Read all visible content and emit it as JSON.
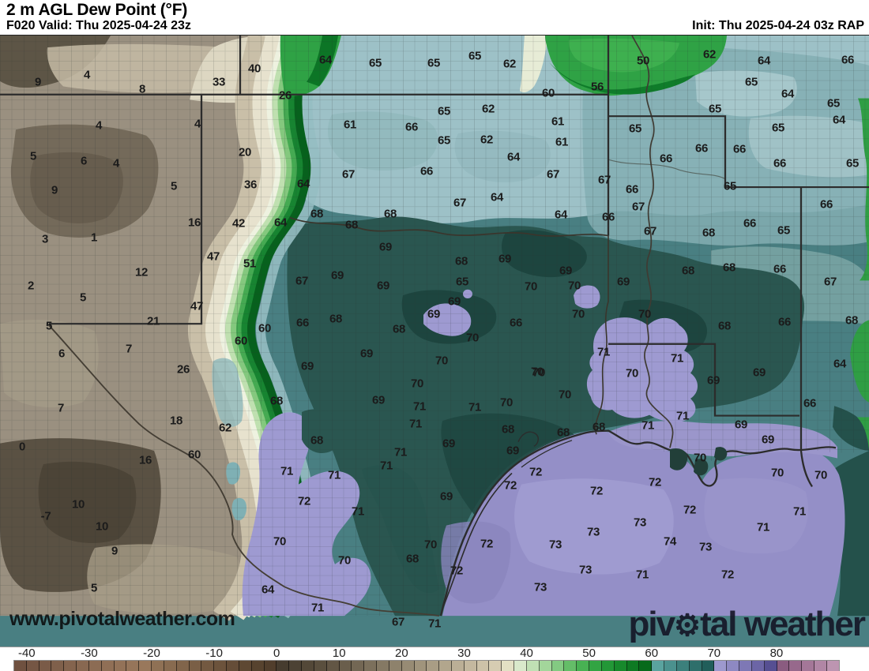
{
  "header": {
    "title": "2 m AGL Dew Point (°F)",
    "valid": "F020 Valid: Thu 2025-04-24 23z",
    "init": "Init: Thu 2025-04-24 03z RAP"
  },
  "map": {
    "watermark": "www.pivotalweather.com",
    "logo": {
      "pre": "piv",
      "gear": "⚙",
      "post": "tal weather"
    },
    "units": "°F",
    "station_values": [
      [
        48,
        104,
        "9"
      ],
      [
        110,
        95,
        "4"
      ],
      [
        180,
        113,
        "8"
      ],
      [
        277,
        104,
        "33"
      ],
      [
        322,
        87,
        "40"
      ],
      [
        361,
        121,
        "26"
      ],
      [
        125,
        159,
        "4"
      ],
      [
        250,
        157,
        "4"
      ],
      [
        412,
        76,
        "64"
      ],
      [
        475,
        80,
        "65"
      ],
      [
        549,
        80,
        "65"
      ],
      [
        601,
        71,
        "65"
      ],
      [
        645,
        81,
        "62"
      ],
      [
        694,
        118,
        "60"
      ],
      [
        756,
        110,
        "56"
      ],
      [
        814,
        77,
        "50"
      ],
      [
        898,
        69,
        "62"
      ],
      [
        967,
        77,
        "64"
      ],
      [
        1073,
        76,
        "66"
      ],
      [
        951,
        104,
        "65"
      ],
      [
        997,
        119,
        "64"
      ],
      [
        1055,
        131,
        "65"
      ],
      [
        1062,
        152,
        "64"
      ],
      [
        42,
        198,
        "5"
      ],
      [
        106,
        204,
        "6"
      ],
      [
        147,
        207,
        "4"
      ],
      [
        310,
        193,
        "20"
      ],
      [
        69,
        241,
        "9"
      ],
      [
        220,
        236,
        "5"
      ],
      [
        317,
        234,
        "36"
      ],
      [
        443,
        158,
        "61"
      ],
      [
        562,
        141,
        "65"
      ],
      [
        618,
        138,
        "62"
      ],
      [
        521,
        161,
        "66"
      ],
      [
        562,
        178,
        "65"
      ],
      [
        616,
        177,
        "62"
      ],
      [
        706,
        154,
        "61"
      ],
      [
        711,
        180,
        "61"
      ],
      [
        650,
        199,
        "64"
      ],
      [
        905,
        138,
        "65"
      ],
      [
        804,
        163,
        "65"
      ],
      [
        985,
        162,
        "65"
      ],
      [
        888,
        188,
        "66"
      ],
      [
        936,
        189,
        "66"
      ],
      [
        843,
        201,
        "66"
      ],
      [
        987,
        207,
        "66"
      ],
      [
        1079,
        207,
        "65"
      ],
      [
        384,
        233,
        "64"
      ],
      [
        441,
        221,
        "67"
      ],
      [
        540,
        217,
        "66"
      ],
      [
        582,
        257,
        "67"
      ],
      [
        629,
        250,
        "64"
      ],
      [
        700,
        221,
        "67"
      ],
      [
        710,
        272,
        "64"
      ],
      [
        765,
        228,
        "67"
      ],
      [
        800,
        240,
        "66"
      ],
      [
        808,
        262,
        "67"
      ],
      [
        770,
        275,
        "66"
      ],
      [
        924,
        236,
        "65"
      ],
      [
        1046,
        259,
        "66"
      ],
      [
        246,
        282,
        "16"
      ],
      [
        302,
        283,
        "42"
      ],
      [
        355,
        282,
        "64"
      ],
      [
        401,
        271,
        "68"
      ],
      [
        445,
        285,
        "68"
      ],
      [
        494,
        271,
        "68"
      ],
      [
        57,
        303,
        "3"
      ],
      [
        119,
        301,
        "1"
      ],
      [
        949,
        283,
        "66"
      ],
      [
        992,
        292,
        "65"
      ],
      [
        823,
        293,
        "67"
      ],
      [
        897,
        295,
        "68"
      ],
      [
        488,
        313,
        "69"
      ],
      [
        584,
        331,
        "68"
      ],
      [
        639,
        328,
        "69"
      ],
      [
        270,
        325,
        "47"
      ],
      [
        316,
        334,
        "51"
      ],
      [
        179,
        345,
        "12"
      ],
      [
        427,
        349,
        "69"
      ],
      [
        382,
        356,
        "67"
      ],
      [
        485,
        362,
        "69"
      ],
      [
        585,
        357,
        "65"
      ],
      [
        716,
        343,
        "69"
      ],
      [
        672,
        363,
        "70"
      ],
      [
        727,
        362,
        "70"
      ],
      [
        789,
        357,
        "69"
      ],
      [
        871,
        343,
        "68"
      ],
      [
        923,
        339,
        "68"
      ],
      [
        987,
        341,
        "66"
      ],
      [
        1051,
        357,
        "67"
      ],
      [
        39,
        362,
        "2"
      ],
      [
        105,
        377,
        "5"
      ],
      [
        249,
        388,
        "47"
      ],
      [
        62,
        413,
        "5"
      ],
      [
        194,
        407,
        "21"
      ],
      [
        335,
        416,
        "60"
      ],
      [
        305,
        432,
        "60"
      ],
      [
        575,
        382,
        "69"
      ],
      [
        549,
        398,
        "69"
      ],
      [
        505,
        417,
        "68"
      ],
      [
        383,
        409,
        "66"
      ],
      [
        425,
        404,
        "68"
      ],
      [
        653,
        409,
        "66"
      ],
      [
        598,
        428,
        "70"
      ],
      [
        732,
        398,
        "70"
      ],
      [
        816,
        398,
        "70"
      ],
      [
        917,
        413,
        "68"
      ],
      [
        993,
        408,
        "66"
      ],
      [
        1078,
        406,
        "68"
      ],
      [
        78,
        448,
        "6"
      ],
      [
        163,
        442,
        "7"
      ],
      [
        232,
        468,
        "26"
      ],
      [
        389,
        464,
        "69"
      ],
      [
        464,
        448,
        "69"
      ],
      [
        559,
        457,
        "70"
      ],
      [
        680,
        471,
        "70"
      ],
      [
        764,
        446,
        "71"
      ],
      [
        857,
        454,
        "71"
      ],
      [
        1063,
        461,
        "64"
      ],
      [
        528,
        486,
        "70"
      ],
      [
        479,
        507,
        "69"
      ],
      [
        350,
        508,
        "68"
      ],
      [
        531,
        515,
        "71"
      ],
      [
        601,
        516,
        "71"
      ],
      [
        641,
        510,
        "70"
      ],
      [
        715,
        500,
        "70"
      ],
      [
        682,
        472,
        "70"
      ],
      [
        800,
        473,
        "70"
      ],
      [
        903,
        482,
        "69"
      ],
      [
        961,
        472,
        "69"
      ],
      [
        1025,
        511,
        "66"
      ],
      [
        77,
        517,
        "7"
      ],
      [
        223,
        533,
        "18"
      ],
      [
        864,
        527,
        "71"
      ],
      [
        820,
        539,
        "71"
      ],
      [
        758,
        541,
        "68"
      ],
      [
        643,
        544,
        "68"
      ],
      [
        713,
        548,
        "68"
      ],
      [
        938,
        538,
        "69"
      ],
      [
        972,
        557,
        "69"
      ],
      [
        285,
        542,
        "62"
      ],
      [
        401,
        558,
        "68"
      ],
      [
        526,
        537,
        "71"
      ],
      [
        568,
        562,
        "69"
      ],
      [
        507,
        573,
        "71"
      ],
      [
        489,
        590,
        "71"
      ],
      [
        28,
        566,
        "0"
      ],
      [
        184,
        583,
        "16"
      ],
      [
        246,
        576,
        "60"
      ],
      [
        363,
        597,
        "71"
      ],
      [
        423,
        602,
        "71"
      ],
      [
        385,
        635,
        "72"
      ],
      [
        565,
        629,
        "69"
      ],
      [
        453,
        648,
        "71"
      ],
      [
        99,
        639,
        "10"
      ],
      [
        58,
        654,
        "-7"
      ],
      [
        129,
        667,
        "10"
      ],
      [
        145,
        698,
        "9"
      ],
      [
        354,
        686,
        "70"
      ],
      [
        436,
        710,
        "70"
      ],
      [
        545,
        690,
        "70"
      ],
      [
        522,
        708,
        "68"
      ],
      [
        578,
        723,
        "72"
      ],
      [
        616,
        689,
        "72"
      ],
      [
        649,
        571,
        "69"
      ],
      [
        678,
        598,
        "72"
      ],
      [
        646,
        615,
        "72"
      ],
      [
        755,
        622,
        "72"
      ],
      [
        829,
        611,
        "72"
      ],
      [
        886,
        580,
        "70"
      ],
      [
        984,
        599,
        "70"
      ],
      [
        1039,
        602,
        "70"
      ],
      [
        873,
        646,
        "72"
      ],
      [
        1012,
        648,
        "71"
      ],
      [
        966,
        668,
        "71"
      ],
      [
        810,
        662,
        "73"
      ],
      [
        751,
        674,
        "73"
      ],
      [
        703,
        690,
        "73"
      ],
      [
        848,
        686,
        "74"
      ],
      [
        893,
        693,
        "73"
      ],
      [
        741,
        722,
        "73"
      ],
      [
        813,
        728,
        "71"
      ],
      [
        921,
        728,
        "72"
      ],
      [
        684,
        744,
        "73"
      ],
      [
        119,
        745,
        "5"
      ],
      [
        339,
        747,
        "64"
      ],
      [
        402,
        770,
        "71"
      ],
      [
        504,
        788,
        "67"
      ],
      [
        550,
        790,
        "71"
      ]
    ]
  },
  "colorbar": {
    "min": -42,
    "max": 90,
    "ticks": [
      -40,
      -30,
      -20,
      -10,
      0,
      10,
      20,
      30,
      40,
      50,
      60,
      70,
      80
    ],
    "segments": [
      "#6f5140",
      "#75564​4",
      "#7a5b48",
      "#7f604b",
      "#84644e",
      "#886851",
      "#8c6c54",
      "#906f56",
      "#937258",
      "#96755a",
      "#99785c",
      "#8f7155",
      "#886b50",
      "#81654b",
      "#7a5f46",
      "#735941",
      "#6c533c",
      "#654d38",
      "#5e4833",
      "#57432f",
      "#513e2c",
      "#463c2f",
      "#4c4234",
      "#534838",
      "#5a4f3e",
      "#625645",
      "#6a5e4c",
      "#736754",
      "#7c705c",
      "#857964",
      "#8e826c",
      "#978b74",
      "#a0947c",
      "#a99d85",
      "#b2a68d",
      "#bbaf96",
      "#c4b89f",
      "#cdc2a8",
      "#d6ccb2",
      "#e3e0c4",
      "#d9e9cb",
      "#c0e0b4",
      "#a3d69b",
      "#83ca82",
      "#64bd68",
      "#48b153",
      "#32a443",
      "#239737",
      "#17892c",
      "#0e7a23",
      "#076a1b",
      "#5aa39f",
      "#4b918e",
      "#3c807c",
      "#2e6f6b",
      "#215e5a",
      "#9d99ce",
      "#8e89c2",
      "#7e78b5",
      "#6c65a6",
      "#564f92",
      "#8a5c80",
      "#97698c",
      "#a47798",
      "#b186a5",
      "#bd95b1"
    ]
  },
  "colors": {
    "land_brown": "#9a9080",
    "dryline_cream": "#e7e2ce",
    "green": "#2fa245",
    "teal_light": "#9dc1c7",
    "teal_base": "#497f82",
    "teal_dark": "#2a5650",
    "purple_land": "#9e9ad1",
    "purple_gulf": "#948fc7",
    "text": "#1b1b1b"
  }
}
